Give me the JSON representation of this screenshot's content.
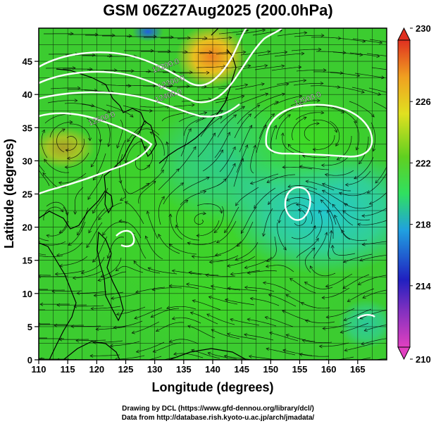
{
  "title": "GSM 06Z27Aug2025 (200.0hPa)",
  "xlabel": "Longitude (degrees)",
  "ylabel": "Latitude  (degrees)",
  "footer": {
    "line1": "Drawing by DCL (https://www.gfd-dennou.org/library/dcl/)",
    "line2": "Data from http://database.rish.kyoto-u.ac.jp/arch/jmadata/"
  },
  "chart_data": {
    "type": "heatmap",
    "xlim": [
      110,
      170
    ],
    "ylim": [
      0,
      50
    ],
    "x_ticks": [
      110,
      115,
      120,
      125,
      130,
      135,
      140,
      145,
      150,
      155,
      160,
      165
    ],
    "y_ticks": [
      0,
      5,
      10,
      15,
      20,
      25,
      30,
      35,
      40,
      45
    ],
    "grid": true,
    "colorbar": {
      "min": 210,
      "max": 230,
      "ticks": [
        210,
        214,
        218,
        222,
        226,
        230
      ],
      "colors": [
        "#e040c0",
        "#2020c0",
        "#20a0e0",
        "#30e060",
        "#60d020",
        "#e0e020",
        "#f0a020",
        "#e03020"
      ]
    },
    "contour_labels": [
      {
        "text": "12200.0",
        "lon": 132,
        "lat": 44
      },
      {
        "text": "12300.0",
        "lon": 133,
        "lat": 41.5
      },
      {
        "text": "12400.0",
        "lon": 132.5,
        "lat": 39.5
      },
      {
        "text": "12500.0",
        "lon": 121,
        "lat": 36
      },
      {
        "text": "12500.0",
        "lon": 156.5,
        "lat": 39
      }
    ],
    "colors": {
      "background_field": "#3ccc30",
      "warm_high": "#e8a020",
      "cool_low": "#30c8c0",
      "contour": "#ffffff",
      "coast": "#000000"
    }
  }
}
